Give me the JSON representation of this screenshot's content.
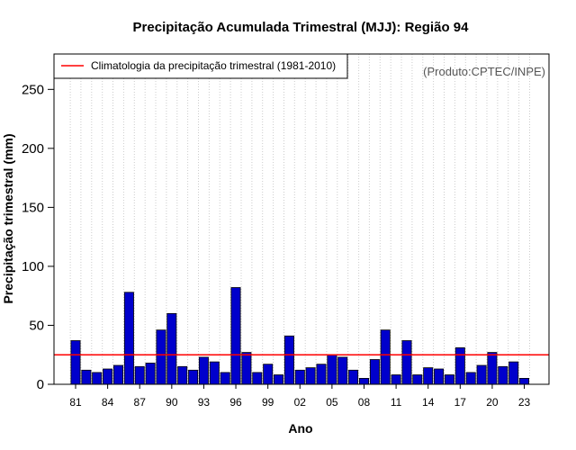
{
  "chart_data": {
    "type": "bar",
    "title": "Precipitação Acumulada Trimestral (MJJ): Região 94",
    "xlabel": "Ano",
    "ylabel": "Precipitação trimestral (mm)",
    "credit": "(Produto:CPTEC/INPE)",
    "ylim": [
      0,
      280
    ],
    "yticks": [
      0,
      50,
      100,
      150,
      200,
      250
    ],
    "ytick_labels": [
      "0",
      "50",
      "100",
      "150",
      "200",
      "250"
    ],
    "xtick_labels": [
      "81",
      "84",
      "87",
      "90",
      "93",
      "96",
      "99",
      "02",
      "05",
      "08",
      "11",
      "14",
      "17",
      "20",
      "23"
    ],
    "categories": [
      "1981",
      "1982",
      "1983",
      "1984",
      "1985",
      "1986",
      "1987",
      "1988",
      "1989",
      "1990",
      "1991",
      "1992",
      "1993",
      "1994",
      "1995",
      "1996",
      "1997",
      "1998",
      "1999",
      "2000",
      "2001",
      "2002",
      "2003",
      "2004",
      "2005",
      "2006",
      "2007",
      "2008",
      "2009",
      "2010",
      "2011",
      "2012",
      "2013",
      "2014",
      "2015",
      "2016",
      "2017",
      "2018",
      "2019",
      "2020",
      "2021",
      "2022",
      "2023"
    ],
    "values": [
      37,
      12,
      10,
      13,
      16,
      78,
      15,
      18,
      46,
      60,
      15,
      12,
      23,
      19,
      10,
      82,
      27,
      10,
      17,
      8,
      41,
      12,
      14,
      17,
      25,
      23,
      12,
      5,
      21,
      46,
      8,
      37,
      8,
      14,
      13,
      8,
      31,
      10,
      16,
      27,
      15,
      19,
      5
    ],
    "climatology": {
      "label": "Climatologia da precipitação trimestral (1981-2010)",
      "value": 25
    },
    "grid": "vertical-dotted",
    "legend_position": "top-left",
    "colors": {
      "bar": "#0000cc",
      "bar_edge": "#000000",
      "climatology": "#ff0000",
      "grid": "#cccccc"
    }
  }
}
